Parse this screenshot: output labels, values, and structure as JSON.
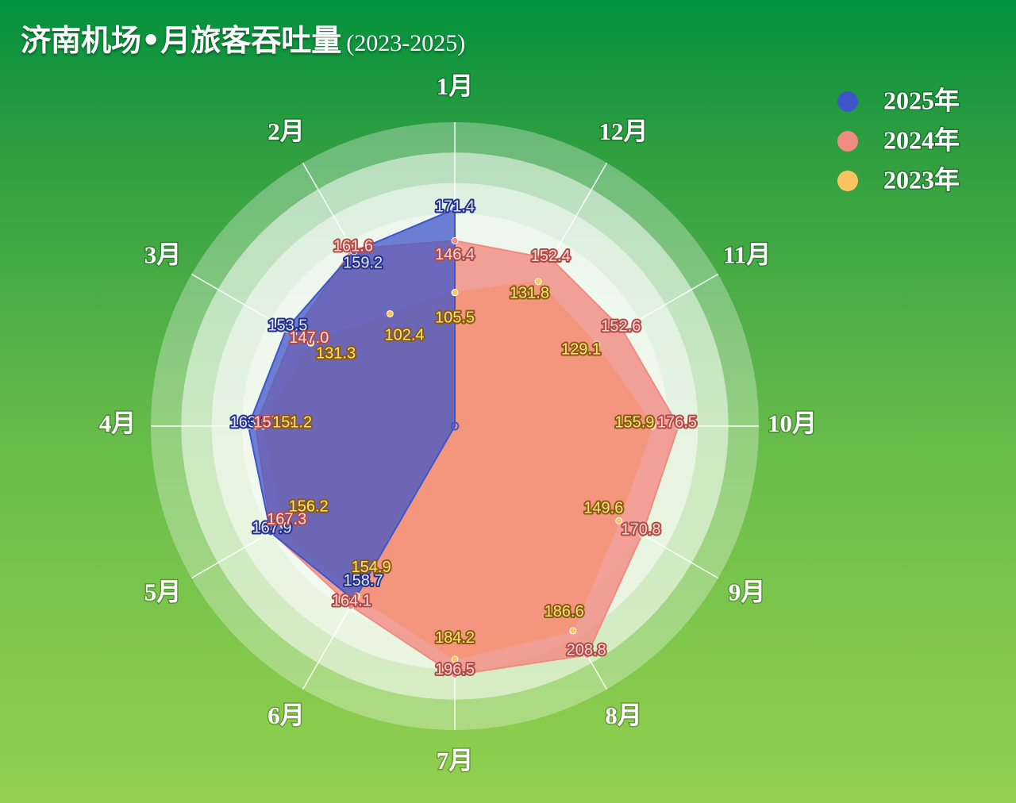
{
  "title": {
    "main": "济南机场•月旅客吞吐量",
    "sub": "(2023-2025)"
  },
  "chart_data": {
    "type": "radar",
    "categories": [
      "1月",
      "12月",
      "11月",
      "10月",
      "9月",
      "8月",
      "7月",
      "6月",
      "5月",
      "4月",
      "3月",
      "2月"
    ],
    "rlim": [
      0,
      240
    ],
    "series": [
      {
        "name": "2023年",
        "color": "#fbc660",
        "values": [
          105.5,
          131.8,
          129.1,
          155.9,
          149.6,
          186.6,
          184.2,
          154.9,
          156.2,
          151.2,
          131.3,
          102.4
        ]
      },
      {
        "name": "2024年",
        "color": "#f18a82",
        "values": [
          146.4,
          152.4,
          152.6,
          176.5,
          170.8,
          208.8,
          196.5,
          164.1,
          167.3,
          157.3,
          147.0,
          161.6
        ]
      },
      {
        "name": "2025年",
        "color": "#3f56c8",
        "values": [
          171.4,
          null,
          null,
          null,
          null,
          null,
          null,
          158.7,
          167.9,
          163.0,
          153.5,
          159.2
        ]
      }
    ],
    "legend": {
      "position": "top-right",
      "order": [
        "2025年",
        "2024年",
        "2023年"
      ]
    },
    "grid": true
  }
}
